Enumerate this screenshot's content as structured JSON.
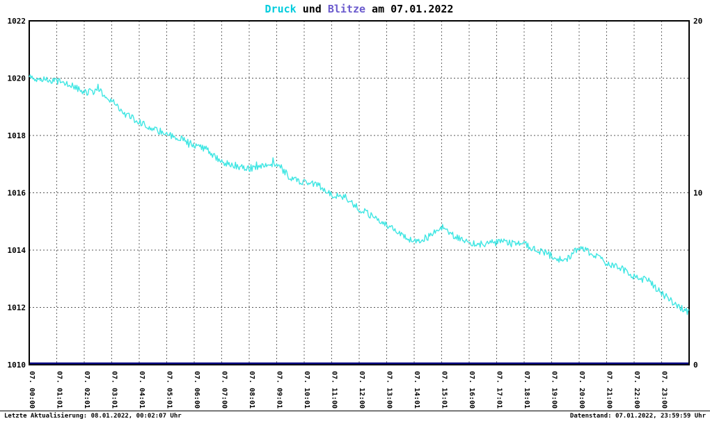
{
  "title": {
    "part1": "Druck",
    "part2": " und ",
    "part3": "Blitze",
    "part4": " am 07.01.2022"
  },
  "footer": {
    "left": "Letzte Aktualisierung: 08.01.2022, 00:02:07 Uhr",
    "right": "Datenstand: 07.01.2022, 23:59:59 Uhr"
  },
  "colors": {
    "druck_title": "#00CCDD",
    "blitze_title": "#6A5ACD",
    "druck_line": "#3FE6E3",
    "blitze_line": "#000080",
    "grid": "#555555",
    "frame": "#000000",
    "background": "#FFFFFF"
  },
  "chart_data": {
    "type": "line",
    "title": "Druck und Blitze am 07.01.2022",
    "grid": {
      "style": "dashed",
      "h_step_hpa": 2,
      "v_step_hours": 1
    },
    "legend_position": "none",
    "x_axis": {
      "unit": "time",
      "range_hours": [
        0,
        24
      ],
      "tick_labels": [
        "07. 00:00",
        "07. 01:01",
        "07. 02:01",
        "07. 03:01",
        "07. 04:01",
        "07. 05:01",
        "07. 06:00",
        "07. 07:00",
        "07. 08:01",
        "07. 09:01",
        "07. 10:01",
        "07. 11:00",
        "07. 12:00",
        "07. 13:00",
        "07. 14:01",
        "07. 15:01",
        "07. 16:00",
        "07. 17:01",
        "07. 18:01",
        "07. 19:00",
        "07. 20:00",
        "07. 21:00",
        "07. 22:00",
        "07. 23:00"
      ]
    },
    "y_left": {
      "name": "Druck",
      "min": 1010,
      "max": 1022,
      "ticks": [
        1022,
        1020,
        1018,
        1016,
        1014,
        1012,
        1010
      ]
    },
    "y_right": {
      "name": "Blitze",
      "min": 0,
      "max": 20,
      "ticks": [
        20,
        10,
        0
      ]
    },
    "series": [
      {
        "name": "Druck",
        "axis": "left",
        "color": "#3FE6E3",
        "x_step_hours": 0.5,
        "values": [
          1020.0,
          1019.95,
          1019.9,
          1019.75,
          1019.5,
          1019.6,
          1019.2,
          1018.75,
          1018.45,
          1018.25,
          1018.05,
          1017.9,
          1017.65,
          1017.5,
          1017.05,
          1016.95,
          1016.85,
          1016.95,
          1017.05,
          1016.5,
          1016.35,
          1016.3,
          1015.9,
          1015.85,
          1015.45,
          1015.15,
          1014.9,
          1014.55,
          1014.3,
          1014.45,
          1014.8,
          1014.45,
          1014.25,
          1014.2,
          1014.3,
          1014.25,
          1014.2,
          1014.0,
          1013.8,
          1013.6,
          1014.1,
          1013.85,
          1013.55,
          1013.4,
          1013.05,
          1012.95,
          1012.5,
          1012.1,
          1011.8
        ],
        "noise_amplitude_hpa": 0.12
      },
      {
        "name": "Blitze",
        "axis": "right",
        "color": "#000080",
        "constant_value": 0
      }
    ]
  }
}
